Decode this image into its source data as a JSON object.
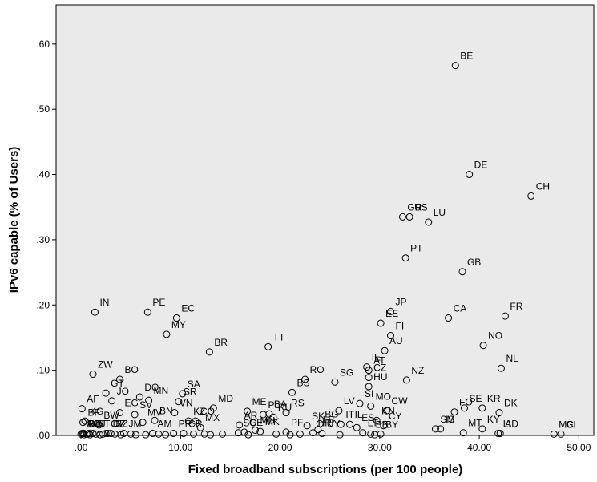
{
  "chart_data": {
    "type": "scatter",
    "xlabel": "Fixed broadband subscriptions (per 100 people)",
    "ylabel": "IPv6 capable (% of Users)",
    "xlim": [
      -2.5,
      51.5
    ],
    "ylim": [
      0,
      0.66
    ],
    "xticks": [
      0,
      10,
      20,
      30,
      40,
      50
    ],
    "xtick_labels": [
      ".00",
      "10.00",
      "20.00",
      "30.00",
      "40.00",
      "50.00"
    ],
    "yticks": [
      0,
      0.1,
      0.2,
      0.3,
      0.4,
      0.5,
      0.6
    ],
    "ytick_labels": [
      ".00",
      ".10",
      ".20",
      ".30",
      ".40",
      ".50",
      ".60"
    ],
    "grid": false,
    "legend": "none",
    "background": "#eaeaea",
    "points": [
      {
        "label": "BE",
        "x": 37.6,
        "y": 0.567
      },
      {
        "label": "DE",
        "x": 39.0,
        "y": 0.4
      },
      {
        "label": "CH",
        "x": 45.2,
        "y": 0.367
      },
      {
        "label": "US",
        "x": 33.0,
        "y": 0.335
      },
      {
        "label": "GR",
        "x": 32.3,
        "y": 0.335
      },
      {
        "label": "LU",
        "x": 34.9,
        "y": 0.327
      },
      {
        "label": "PT",
        "x": 32.6,
        "y": 0.272
      },
      {
        "label": "GB",
        "x": 38.3,
        "y": 0.251
      },
      {
        "label": "IN",
        "x": 1.4,
        "y": 0.189
      },
      {
        "label": "PE",
        "x": 6.7,
        "y": 0.189
      },
      {
        "label": "EC",
        "x": 9.6,
        "y": 0.18
      },
      {
        "label": "MY",
        "x": 8.6,
        "y": 0.155
      },
      {
        "label": "BR",
        "x": 12.9,
        "y": 0.128
      },
      {
        "label": "TT",
        "x": 18.8,
        "y": 0.136
      },
      {
        "label": "JP",
        "x": 31.1,
        "y": 0.19
      },
      {
        "label": "EE",
        "x": 30.1,
        "y": 0.172
      },
      {
        "label": "FI",
        "x": 31.1,
        "y": 0.153
      },
      {
        "label": "CA",
        "x": 36.9,
        "y": 0.18
      },
      {
        "label": "FR",
        "x": 42.6,
        "y": 0.183
      },
      {
        "label": "NO",
        "x": 40.4,
        "y": 0.138
      },
      {
        "label": "NL",
        "x": 42.2,
        "y": 0.103
      },
      {
        "label": "AU",
        "x": 30.5,
        "y": 0.13
      },
      {
        "label": "IE",
        "x": 28.7,
        "y": 0.105
      },
      {
        "label": "AT",
        "x": 28.9,
        "y": 0.1
      },
      {
        "label": "NZ",
        "x": 32.7,
        "y": 0.085
      },
      {
        "label": "CZ",
        "x": 28.9,
        "y": 0.089
      },
      {
        "label": "HU",
        "x": 28.9,
        "y": 0.075
      },
      {
        "label": "SG",
        "x": 25.5,
        "y": 0.082
      },
      {
        "label": "RO",
        "x": 22.5,
        "y": 0.086
      },
      {
        "label": "ZW",
        "x": 1.2,
        "y": 0.094
      },
      {
        "label": "BO",
        "x": 3.9,
        "y": 0.086
      },
      {
        "label": "SA",
        "x": 10.2,
        "y": 0.064
      },
      {
        "label": "GT",
        "x": 2.5,
        "y": 0.065
      },
      {
        "label": "JO",
        "x": 3.1,
        "y": 0.053
      },
      {
        "label": "DO",
        "x": 5.9,
        "y": 0.059
      },
      {
        "label": "MN",
        "x": 6.8,
        "y": 0.054
      },
      {
        "label": "BS",
        "x": 21.2,
        "y": 0.066
      },
      {
        "label": "AF",
        "x": 0.1,
        "y": 0.041
      },
      {
        "label": "KG",
        "x": 0.4,
        "y": 0.022
      },
      {
        "label": "BF",
        "x": 0.2,
        "y": 0.02
      },
      {
        "label": "EG",
        "x": 3.9,
        "y": 0.035
      },
      {
        "label": "SV",
        "x": 5.4,
        "y": 0.032
      },
      {
        "label": "BW",
        "x": 1.8,
        "y": 0.016
      },
      {
        "label": "MV",
        "x": 6.2,
        "y": 0.02
      },
      {
        "label": "BN",
        "x": 7.4,
        "y": 0.023
      },
      {
        "label": "SR",
        "x": 9.8,
        "y": 0.052
      },
      {
        "label": "VN",
        "x": 9.4,
        "y": 0.035
      },
      {
        "label": "KZ",
        "x": 10.8,
        "y": 0.022
      },
      {
        "label": "MD",
        "x": 13.3,
        "y": 0.042
      },
      {
        "label": "CO",
        "x": 11.5,
        "y": 0.022
      },
      {
        "label": "MX",
        "x": 12.0,
        "y": 0.012
      },
      {
        "label": "ME",
        "x": 16.7,
        "y": 0.037
      },
      {
        "label": "PL",
        "x": 18.3,
        "y": 0.032
      },
      {
        "label": "AR",
        "x": 15.9,
        "y": 0.016
      },
      {
        "label": "MU",
        "x": 17.5,
        "y": 0.008
      },
      {
        "label": "BA",
        "x": 18.9,
        "y": 0.033
      },
      {
        "label": "RS",
        "x": 20.6,
        "y": 0.035
      },
      {
        "label": "RU",
        "x": 19.3,
        "y": 0.028
      },
      {
        "label": "SC",
        "x": 15.8,
        "y": 0.004
      },
      {
        "label": "GE",
        "x": 16.4,
        "y": 0.005
      },
      {
        "label": "MK",
        "x": 18.0,
        "y": 0.006
      },
      {
        "label": "PF",
        "x": 20.6,
        "y": 0.005
      },
      {
        "label": "SK",
        "x": 22.7,
        "y": 0.015
      },
      {
        "label": "BG",
        "x": 24.0,
        "y": 0.018
      },
      {
        "label": "LB",
        "x": 23.8,
        "y": 0.009
      },
      {
        "label": "HR",
        "x": 23.3,
        "y": 0.004
      },
      {
        "label": "UY",
        "x": 24.2,
        "y": 0.003
      },
      {
        "label": "LV",
        "x": 25.9,
        "y": 0.038
      },
      {
        "label": "CW",
        "x": 30.7,
        "y": 0.038
      },
      {
        "label": "SI",
        "x": 28.0,
        "y": 0.049
      },
      {
        "label": "MO",
        "x": 29.1,
        "y": 0.045
      },
      {
        "label": "KN",
        "x": 29.7,
        "y": 0.023
      },
      {
        "label": "CY",
        "x": 30.4,
        "y": 0.015
      },
      {
        "label": "IT",
        "x": 26.1,
        "y": 0.017
      },
      {
        "label": "IL",
        "x": 27.0,
        "y": 0.017
      },
      {
        "label": "ES",
        "x": 27.7,
        "y": 0.012
      },
      {
        "label": "LT",
        "x": 28.3,
        "y": 0.004
      },
      {
        "label": "BB",
        "x": 29.1,
        "y": 0.002
      },
      {
        "label": "BY",
        "x": 30.1,
        "y": 0.002
      },
      {
        "label": "FO",
        "x": 37.5,
        "y": 0.036
      },
      {
        "label": "SE",
        "x": 38.5,
        "y": 0.042
      },
      {
        "label": "KR",
        "x": 40.3,
        "y": 0.042
      },
      {
        "label": "KY",
        "x": 40.3,
        "y": 0.01
      },
      {
        "label": "DK",
        "x": 42.0,
        "y": 0.035
      },
      {
        "label": "SM",
        "x": 35.6,
        "y": 0.01
      },
      {
        "label": "IS",
        "x": 36.1,
        "y": 0.01
      },
      {
        "label": "MT",
        "x": 38.4,
        "y": 0.004
      },
      {
        "label": "LI",
        "x": 41.9,
        "y": 0.003
      },
      {
        "label": "AD",
        "x": 42.1,
        "y": 0.003
      },
      {
        "label": "MC",
        "x": 47.5,
        "y": 0.002
      },
      {
        "label": "GI",
        "x": 48.2,
        "y": 0.002
      },
      {
        "label": "AO",
        "x": 0.1,
        "y": 0.003
      },
      {
        "label": "BJ",
        "x": 0.2,
        "y": 0.003
      },
      {
        "label": "BD",
        "x": 0.3,
        "y": 0.003
      },
      {
        "label": "DJ",
        "x": 0.8,
        "y": 0.003
      },
      {
        "label": "BT",
        "x": 1.2,
        "y": 0.003
      },
      {
        "label": "CV",
        "x": 2.5,
        "y": 0.003
      },
      {
        "label": "DZ",
        "x": 2.7,
        "y": 0.003
      },
      {
        "label": "BZ",
        "x": 3.0,
        "y": 0.003
      },
      {
        "label": "JM",
        "x": 4.3,
        "y": 0.003
      },
      {
        "label": "AM",
        "x": 7.2,
        "y": 0.003
      },
      {
        "label": "PR",
        "x": 9.3,
        "y": 0.003
      },
      {
        "label": "CR",
        "x": 10.3,
        "y": 0.003
      }
    ],
    "unlabeled_points": [
      {
        "x": 0.0,
        "y": 0.002
      },
      {
        "x": 0.3,
        "y": 0.001
      },
      {
        "x": 0.6,
        "y": 0.002
      },
      {
        "x": 0.9,
        "y": 0.001
      },
      {
        "x": 1.5,
        "y": 0.002
      },
      {
        "x": 1.9,
        "y": 0.001
      },
      {
        "x": 2.2,
        "y": 0.002
      },
      {
        "x": 3.4,
        "y": 0.002
      },
      {
        "x": 4.0,
        "y": 0.001
      },
      {
        "x": 5.0,
        "y": 0.002
      },
      {
        "x": 5.5,
        "y": 0.001
      },
      {
        "x": 6.5,
        "y": 0.001
      },
      {
        "x": 7.8,
        "y": 0.002
      },
      {
        "x": 8.5,
        "y": 0.001
      },
      {
        "x": 11.3,
        "y": 0.002
      },
      {
        "x": 12.4,
        "y": 0.002
      },
      {
        "x": 13.0,
        "y": 0.001
      },
      {
        "x": 14.2,
        "y": 0.002
      },
      {
        "x": 16.8,
        "y": 0.001
      },
      {
        "x": 19.6,
        "y": 0.002
      },
      {
        "x": 21.0,
        "y": 0.001
      },
      {
        "x": 22.0,
        "y": 0.002
      },
      {
        "x": 26.0,
        "y": 0.001
      },
      {
        "x": 29.5,
        "y": 0.001
      }
    ]
  }
}
